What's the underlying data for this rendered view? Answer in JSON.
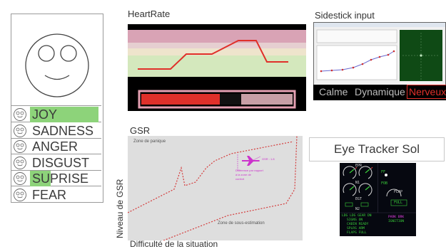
{
  "emotions": {
    "items": [
      {
        "label": "JOY",
        "level": 0.98
      },
      {
        "label": "SADNESS",
        "level": 0.0
      },
      {
        "label": "ANGER",
        "level": 0.0
      },
      {
        "label": "DISGUST",
        "level": 0.0
      },
      {
        "label": "SUPRISE",
        "level": 0.3
      },
      {
        "label": "FEAR",
        "level": 0.0
      }
    ],
    "fill_color": "#8dd37a"
  },
  "heart_rate": {
    "title": "HeartRate",
    "gauge_level": 0.6,
    "zone_colors": [
      "#d9a3b5",
      "#e6cfd1",
      "#eee4cc",
      "#d4e8bd"
    ],
    "line_color": "#e0302a"
  },
  "sidestick": {
    "title": "Sidestick input",
    "modes": [
      "Calme",
      "Dynamique",
      "Nerveux"
    ],
    "active_mode": "Nerveux",
    "active_color": "#e0302a"
  },
  "gsr": {
    "title": "GSR",
    "zone_top": "Zone de panique",
    "zone_bottom": "Zone de sous-estimation",
    "ylabel": "Niveau de GSR",
    "xlabel": "Difficulté de la situation",
    "marker_color": "#cc33cc",
    "marker_value": "GSR : 1.8",
    "marker_note": [
      "Différence par rapport",
      "à la zone de",
      "confort"
    ]
  },
  "eye_tracker": {
    "title": "Eye Tracker Sol",
    "screen_texts": [
      "EPR",
      "N1",
      "EGT",
      "N2",
      "FF",
      "FOB",
      "FLAP",
      "FULL",
      "LDG LDG GEAR DN",
      "SIGNS ON",
      "CABIN READY",
      "SPLRS ARM",
      "FLAPS FULL",
      "PARK BRK",
      "IGNITION"
    ]
  }
}
